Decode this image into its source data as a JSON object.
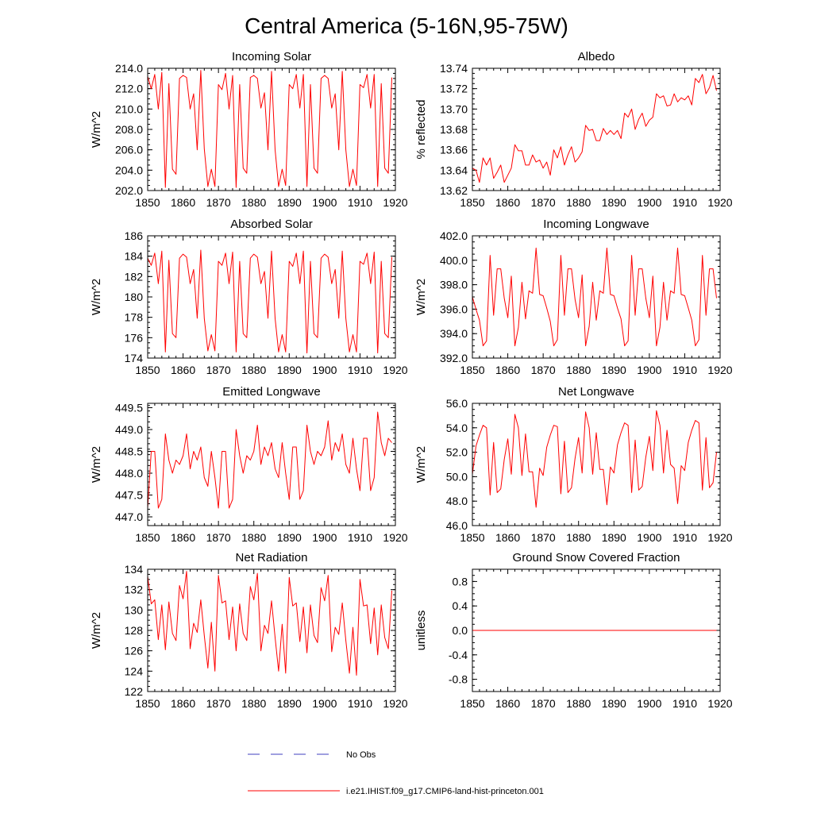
{
  "title": "Central America (5-16N,95-75W)",
  "legend": [
    {
      "label": "No Obs",
      "color": "#3f3fbf",
      "dashed": true
    },
    {
      "label": "i.e21.IHIST.f09_g17.CMIP6-land-hist-princeton.001",
      "color": "#ff0000",
      "dashed": false
    }
  ],
  "chart_data": [
    {
      "type": "line",
      "title": "Incoming Solar",
      "ylabel": "W/m^2",
      "xlim": [
        1850,
        1920
      ],
      "ylim": [
        202.0,
        214.0
      ],
      "xticks": [
        1850,
        1860,
        1870,
        1880,
        1890,
        1900,
        1910,
        1920
      ],
      "yticks": [
        "202.0",
        "204.0",
        "206.0",
        "208.0",
        "210.0",
        "212.0",
        "214.0"
      ],
      "series": [
        {
          "color": "#ff0000",
          "x_start": 1850,
          "values": [
            213.2,
            212.0,
            213.4,
            210.0,
            213.6,
            202.3,
            212.5,
            204.1,
            203.6,
            213.0,
            213.3,
            213.1,
            210.0,
            211.5,
            206.0,
            213.8,
            206.1,
            202.4,
            204.1,
            202.4,
            212.4,
            211.9,
            213.5,
            210.0,
            213.3,
            202.3,
            212.4,
            204.2,
            203.7,
            213.1,
            213.3,
            213.0,
            210.1,
            211.6,
            206.0,
            213.7,
            206.0,
            202.4,
            204.1,
            202.5,
            212.4,
            212.0,
            213.4,
            210.1,
            213.4,
            202.4,
            212.4,
            204.2,
            203.7,
            213.0,
            213.3,
            213.0,
            210.1,
            211.5,
            206.0,
            213.7,
            206.0,
            202.4,
            204.1,
            202.5,
            212.4,
            212.1,
            213.4,
            210.1,
            213.4,
            202.4,
            212.5,
            204.2,
            203.7,
            213.1
          ]
        }
      ]
    },
    {
      "type": "line",
      "title": "Albedo",
      "ylabel": "% reflected",
      "xlim": [
        1850,
        1920
      ],
      "ylim": [
        13.62,
        13.74
      ],
      "xticks": [
        1850,
        1860,
        1870,
        1880,
        1890,
        1900,
        1910,
        1920
      ],
      "yticks": [
        "13.62",
        "13.64",
        "13.66",
        "13.68",
        "13.70",
        "13.72",
        "13.74"
      ],
      "series": [
        {
          "color": "#ff0000",
          "x_start": 1850,
          "values": [
            13.642,
            13.64,
            13.628,
            13.652,
            13.645,
            13.652,
            13.632,
            13.638,
            13.645,
            13.628,
            13.635,
            13.642,
            13.665,
            13.659,
            13.659,
            13.645,
            13.645,
            13.655,
            13.648,
            13.65,
            13.642,
            13.648,
            13.635,
            13.66,
            13.652,
            13.663,
            13.645,
            13.655,
            13.663,
            13.648,
            13.652,
            13.658,
            13.684,
            13.679,
            13.68,
            13.669,
            13.669,
            13.681,
            13.675,
            13.679,
            13.675,
            13.679,
            13.671,
            13.696,
            13.692,
            13.7,
            13.68,
            13.69,
            13.696,
            13.683,
            13.689,
            13.692,
            13.715,
            13.711,
            13.713,
            13.703,
            13.704,
            13.715,
            13.707,
            13.711,
            13.709,
            13.713,
            13.704,
            13.73,
            13.726,
            13.734,
            13.715,
            13.721,
            13.733,
            13.718
          ]
        }
      ]
    },
    {
      "type": "line",
      "title": "Absorbed Solar",
      "ylabel": "W/m^2",
      "xlim": [
        1850,
        1920
      ],
      "ylim": [
        174,
        186
      ],
      "xticks": [
        1850,
        1860,
        1870,
        1880,
        1890,
        1900,
        1910,
        1920
      ],
      "yticks": [
        "174",
        "176",
        "178",
        "180",
        "182",
        "184",
        "186"
      ],
      "series": [
        {
          "color": "#ff0000",
          "x_start": 1850,
          "values": [
            183.8,
            183.1,
            184.3,
            181.3,
            184.5,
            174.6,
            183.6,
            176.4,
            176.0,
            183.8,
            184.2,
            183.9,
            181.3,
            182.7,
            177.9,
            184.6,
            177.9,
            174.7,
            176.3,
            174.7,
            183.5,
            183.1,
            184.3,
            181.3,
            184.4,
            174.6,
            183.5,
            176.4,
            176.0,
            183.8,
            184.2,
            183.9,
            181.3,
            182.5,
            177.9,
            184.5,
            177.9,
            174.6,
            176.3,
            174.6,
            183.5,
            183.0,
            184.3,
            181.3,
            184.5,
            174.5,
            183.5,
            176.4,
            176.0,
            183.8,
            184.2,
            183.9,
            181.3,
            182.7,
            177.9,
            184.5,
            177.9,
            174.6,
            176.3,
            174.6,
            183.5,
            183.2,
            184.3,
            181.3,
            184.4,
            174.5,
            183.5,
            176.4,
            176.0,
            183.9
          ]
        }
      ]
    },
    {
      "type": "line",
      "title": "Incoming Longwave",
      "ylabel": "W/m^2",
      "xlim": [
        1850,
        1920
      ],
      "ylim": [
        392.0,
        402.0
      ],
      "xticks": [
        1850,
        1860,
        1870,
        1880,
        1890,
        1900,
        1910,
        1920
      ],
      "yticks": [
        "392.0",
        "394.0",
        "396.0",
        "398.0",
        "400.0",
        "402.0"
      ],
      "series": [
        {
          "color": "#ff0000",
          "x_start": 1850,
          "values": [
            397.0,
            396.0,
            395.1,
            393.0,
            393.4,
            400.4,
            395.5,
            399.3,
            399.3,
            396.9,
            395.3,
            398.7,
            393.0,
            394.5,
            398.2,
            395.2,
            397.5,
            397.3,
            401.0,
            397.2,
            397.1,
            396.1,
            395.0,
            393.0,
            393.5,
            400.4,
            395.5,
            399.3,
            399.3,
            396.8,
            395.3,
            398.8,
            393.0,
            394.6,
            398.2,
            395.1,
            397.5,
            397.3,
            401.0,
            397.2,
            397.1,
            396.1,
            395.2,
            393.0,
            393.4,
            400.4,
            395.5,
            399.3,
            399.3,
            396.9,
            395.3,
            398.7,
            393.0,
            394.5,
            398.2,
            395.1,
            397.5,
            397.3,
            401.0,
            397.2,
            397.1,
            396.1,
            395.1,
            393.0,
            393.5,
            400.4,
            395.5,
            399.3,
            399.3,
            396.9
          ]
        }
      ]
    },
    {
      "type": "line",
      "title": "Emitted Longwave",
      "ylabel": "W/m^2",
      "xlim": [
        1850,
        1920
      ],
      "ylim": [
        446.8,
        449.6
      ],
      "xticks": [
        1850,
        1860,
        1870,
        1880,
        1890,
        1900,
        1910,
        1920
      ],
      "yticks": [
        "447.0",
        "447.5",
        "448.0",
        "448.5",
        "449.0",
        "449.5"
      ],
      "series": [
        {
          "color": "#ff0000",
          "x_start": 1850,
          "values": [
            447.2,
            448.5,
            448.5,
            447.2,
            447.4,
            448.9,
            448.3,
            448.0,
            448.3,
            448.2,
            448.4,
            448.9,
            448.1,
            448.5,
            448.3,
            448.6,
            447.9,
            447.7,
            448.5,
            447.9,
            447.2,
            448.5,
            448.5,
            447.2,
            447.4,
            449.0,
            448.4,
            448.0,
            448.4,
            448.3,
            448.5,
            449.1,
            448.2,
            448.6,
            448.4,
            448.7,
            448.1,
            447.9,
            448.7,
            448.0,
            447.4,
            448.6,
            448.6,
            447.4,
            447.6,
            449.1,
            448.5,
            448.2,
            448.5,
            448.4,
            448.6,
            449.2,
            448.3,
            448.7,
            448.5,
            448.9,
            448.2,
            448.0,
            448.8,
            448.1,
            447.6,
            448.8,
            448.8,
            447.6,
            447.9,
            449.4,
            448.7,
            448.4,
            448.8,
            448.7
          ]
        }
      ]
    },
    {
      "type": "line",
      "title": "Net Longwave",
      "ylabel": "W/m^2",
      "xlim": [
        1850,
        1920
      ],
      "ylim": [
        46.0,
        56.0
      ],
      "xticks": [
        1850,
        1860,
        1870,
        1880,
        1890,
        1900,
        1910,
        1920
      ],
      "yticks": [
        "46.0",
        "48.0",
        "50.0",
        "52.0",
        "54.0",
        "56.0"
      ],
      "series": [
        {
          "color": "#ff0000",
          "x_start": 1850,
          "values": [
            50.2,
            52.5,
            53.4,
            54.2,
            54.0,
            48.5,
            52.8,
            48.7,
            49.0,
            51.4,
            53.1,
            50.2,
            55.1,
            54.0,
            50.1,
            53.5,
            50.4,
            50.4,
            47.5,
            50.7,
            50.1,
            52.4,
            53.4,
            54.2,
            54.1,
            48.6,
            52.9,
            48.7,
            49.1,
            51.5,
            53.2,
            50.3,
            55.3,
            54.0,
            50.2,
            53.6,
            50.6,
            50.6,
            47.7,
            50.8,
            50.3,
            52.6,
            53.6,
            54.4,
            54.2,
            48.7,
            53.0,
            48.9,
            49.2,
            51.6,
            53.3,
            50.5,
            55.4,
            54.2,
            50.3,
            53.8,
            51.0,
            50.7,
            47.8,
            50.9,
            50.5,
            52.8,
            53.8,
            54.6,
            54.4,
            48.9,
            53.2,
            49.1,
            49.5,
            52.0
          ]
        }
      ]
    },
    {
      "type": "line",
      "title": "Net Radiation",
      "ylabel": "W/m^2",
      "xlim": [
        1850,
        1920
      ],
      "ylim": [
        122,
        134
      ],
      "xticks": [
        1850,
        1860,
        1870,
        1880,
        1890,
        1900,
        1910,
        1920
      ],
      "yticks": [
        "122",
        "124",
        "126",
        "128",
        "130",
        "132",
        "134"
      ],
      "series": [
        {
          "color": "#ff0000",
          "x_start": 1850,
          "values": [
            133.3,
            130.6,
            131.0,
            127.1,
            130.5,
            126.1,
            130.8,
            127.7,
            127.0,
            132.4,
            131.1,
            133.8,
            126.2,
            128.7,
            127.8,
            131.0,
            127.5,
            124.3,
            128.8,
            124.0,
            133.4,
            130.7,
            130.9,
            127.1,
            130.3,
            126.0,
            130.6,
            127.7,
            127.0,
            132.3,
            131.0,
            133.6,
            126.0,
            128.5,
            127.7,
            130.9,
            127.3,
            124.0,
            128.6,
            123.8,
            133.2,
            130.4,
            130.7,
            126.9,
            130.3,
            125.8,
            130.5,
            127.5,
            126.8,
            132.2,
            130.9,
            133.4,
            125.9,
            128.3,
            127.6,
            130.7,
            127.0,
            123.8,
            128.3,
            123.6,
            133.0,
            130.4,
            130.5,
            126.7,
            130.2,
            125.6,
            130.5,
            127.3,
            126.2,
            131.9
          ]
        }
      ]
    },
    {
      "type": "line",
      "title": "Ground Snow Covered Fraction",
      "ylabel": "unitless",
      "xlim": [
        1850,
        1920
      ],
      "ylim": [
        -1.0,
        1.0
      ],
      "xticks": [
        1850,
        1860,
        1870,
        1880,
        1890,
        1900,
        1910,
        1920
      ],
      "yticks": [
        "-0.8",
        "-0.4",
        "0.0",
        "0.4",
        "0.8"
      ],
      "series": [
        {
          "color": "#ff0000",
          "x_start": 1850,
          "x_end": 1919,
          "constant": 0.0,
          "values": []
        }
      ]
    }
  ]
}
